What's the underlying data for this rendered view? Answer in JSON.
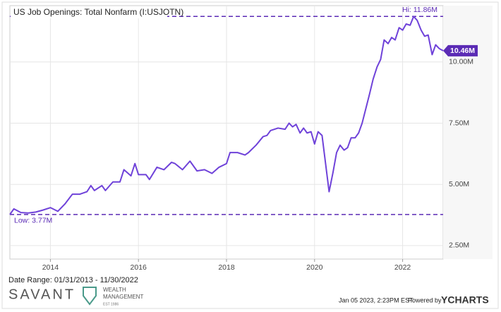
{
  "chart_data": {
    "type": "line",
    "title": "US Job Openings: Total Nonfarm (I:USJOTN)",
    "x": [
      2013.08,
      2013.17,
      2013.33,
      2013.5,
      2013.67,
      2013.83,
      2014.0,
      2014.17,
      2014.33,
      2014.5,
      2014.67,
      2014.83,
      2014.92,
      2015.0,
      2015.17,
      2015.25,
      2015.42,
      2015.58,
      2015.67,
      2015.83,
      2015.92,
      2016.0,
      2016.17,
      2016.25,
      2016.42,
      2016.58,
      2016.75,
      2016.83,
      2017.0,
      2017.17,
      2017.33,
      2017.5,
      2017.67,
      2017.83,
      2018.0,
      2018.08,
      2018.25,
      2018.42,
      2018.5,
      2018.67,
      2018.83,
      2018.92,
      2019.0,
      2019.17,
      2019.33,
      2019.42,
      2019.5,
      2019.58,
      2019.67,
      2019.75,
      2019.83,
      2019.92,
      2020.0,
      2020.08,
      2020.17,
      2020.33,
      2020.42,
      2020.5,
      2020.58,
      2020.67,
      2020.75,
      2020.83,
      2020.92,
      2021.0,
      2021.08,
      2021.25,
      2021.33,
      2021.42,
      2021.5,
      2021.58,
      2021.67,
      2021.75,
      2021.83,
      2021.92,
      2022.0,
      2022.08,
      2022.17,
      2022.25,
      2022.33,
      2022.42,
      2022.5,
      2022.58,
      2022.67,
      2022.75,
      2022.83,
      2022.92
    ],
    "series": [
      {
        "name": "US Job Openings: Total Nonfarm",
        "color": "#6f42d9",
        "values": [
          3.77,
          4.0,
          3.85,
          3.83,
          3.87,
          3.95,
          4.05,
          3.9,
          4.2,
          4.6,
          4.6,
          4.7,
          4.95,
          4.75,
          4.95,
          4.75,
          5.1,
          5.1,
          5.6,
          5.35,
          5.85,
          5.4,
          5.4,
          5.2,
          5.7,
          5.6,
          5.9,
          5.85,
          5.6,
          5.95,
          5.55,
          5.6,
          5.45,
          5.7,
          5.85,
          6.3,
          6.3,
          6.2,
          6.3,
          6.6,
          6.95,
          7.0,
          7.2,
          7.3,
          7.25,
          7.5,
          7.35,
          7.45,
          7.1,
          7.3,
          7.1,
          7.15,
          6.65,
          7.15,
          7.0,
          4.7,
          5.5,
          6.3,
          6.6,
          6.4,
          6.5,
          6.9,
          6.9,
          7.1,
          7.5,
          8.7,
          9.3,
          9.8,
          10.1,
          10.9,
          10.75,
          11.0,
          10.9,
          11.4,
          11.3,
          11.55,
          11.5,
          11.86,
          11.7,
          11.3,
          11.05,
          11.1,
          10.3,
          10.7,
          10.55,
          10.46
        ]
      }
    ],
    "xlim": [
      2013.08,
      2022.92
    ],
    "xticks": [
      2014,
      2016,
      2018,
      2020,
      2022
    ],
    "ylim": [
      1.95,
      12.3
    ],
    "yticks": [
      {
        "value": 2.5,
        "label": "2.50M"
      },
      {
        "value": 5,
        "label": "5.00M"
      },
      {
        "value": 7.5,
        "label": "7.50M"
      },
      {
        "value": 10,
        "label": "10.00M"
      }
    ],
    "grid": true,
    "hi": {
      "value": 11.86,
      "label": "Hi: 11.86M"
    },
    "low": {
      "value": 3.77,
      "label": "Low: 3.77M"
    },
    "last_value": {
      "value": 10.46,
      "label": "10.46M"
    },
    "date_range": "Date Range: 01/31/2013 - 11/30/2022",
    "footer_timestamp": "Jan 05 2023, 2:23PM EST.",
    "powered_by": "Powered by",
    "brand": "YCHARTS",
    "logo": {
      "name": "SAVANT",
      "line1": "WEALTH",
      "line2": "MANAGEMENT",
      "est": "EST 1986"
    }
  }
}
